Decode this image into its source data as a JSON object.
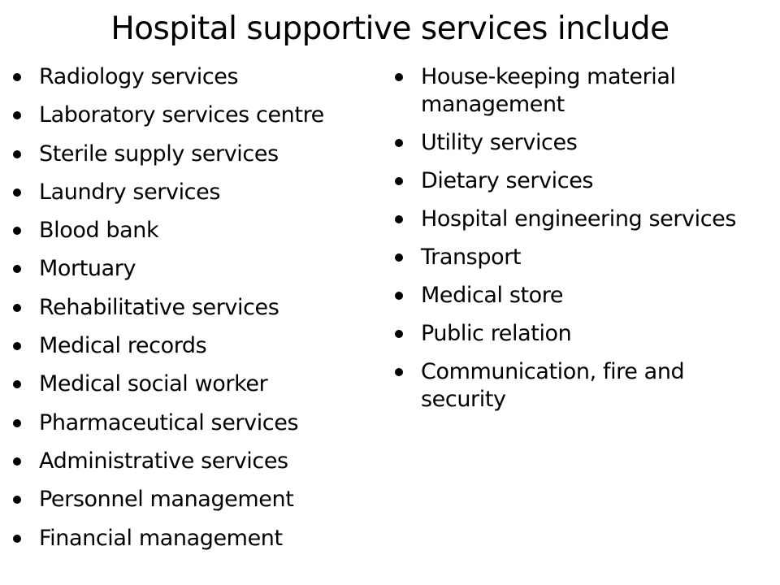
{
  "slide": {
    "title": "Hospital supportive services include",
    "left_column": [
      "Radiology services",
      "Laboratory services centre",
      "Sterile supply services",
      "Laundry services",
      "Blood bank",
      "Mortuary",
      "Rehabilitative services",
      "Medical records",
      "Medical social worker",
      "Pharmaceutical services",
      "Administrative services",
      "Personnel management",
      "Financial management"
    ],
    "right_column": [
      "House-keeping material management",
      "Utility services",
      "Dietary services",
      "Hospital engineering services",
      "Transport",
      "Medical store",
      "Public relation",
      "Communication, fire and security"
    ]
  }
}
